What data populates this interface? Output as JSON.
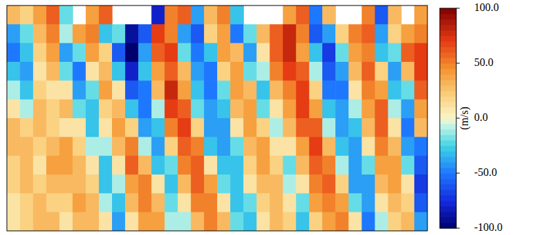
{
  "chart_data": {
    "type": "heatmap",
    "tick_labels": false,
    "cells": [
      [
        30,
        20,
        40,
        60,
        -20,
        null,
        40,
        60,
        null,
        null,
        null,
        -80,
        50,
        60,
        -40,
        30,
        50,
        -30,
        null,
        null,
        null,
        40,
        60,
        -50,
        30,
        null,
        null,
        50,
        -60,
        30,
        null,
        40
      ],
      [
        -40,
        -20,
        30,
        50,
        -10,
        40,
        50,
        -30,
        -20,
        -90,
        -60,
        70,
        50,
        -40,
        -60,
        20,
        40,
        -50,
        -20,
        30,
        60,
        80,
        50,
        -60,
        -40,
        20,
        50,
        60,
        -40,
        20,
        40,
        50
      ],
      [
        -50,
        -30,
        20,
        40,
        -40,
        -20,
        40,
        20,
        -60,
        -100,
        -40,
        60,
        70,
        -20,
        -50,
        -30,
        40,
        30,
        -40,
        10,
        60,
        80,
        40,
        -30,
        -70,
        -20,
        40,
        50,
        -30,
        -20,
        60,
        70
      ],
      [
        -30,
        -40,
        10,
        30,
        -20,
        -50,
        10,
        30,
        -30,
        -80,
        -30,
        40,
        60,
        30,
        -40,
        -50,
        20,
        40,
        -20,
        -10,
        50,
        70,
        60,
        -10,
        -60,
        -40,
        30,
        60,
        20,
        -40,
        30,
        70
      ],
      [
        -10,
        -30,
        20,
        10,
        10,
        -40,
        -20,
        40,
        10,
        -60,
        -50,
        30,
        80,
        40,
        -30,
        -50,
        -20,
        40,
        30,
        -30,
        30,
        50,
        70,
        20,
        -50,
        -50,
        10,
        50,
        40,
        -30,
        -20,
        60
      ],
      [
        10,
        -10,
        30,
        20,
        30,
        -20,
        -30,
        20,
        30,
        -30,
        -50,
        -10,
        70,
        60,
        -20,
        -40,
        -30,
        30,
        40,
        -20,
        10,
        40,
        70,
        40,
        -30,
        -40,
        -10,
        40,
        60,
        -10,
        -40,
        40
      ],
      [
        30,
        20,
        30,
        20,
        10,
        10,
        -30,
        10,
        40,
        20,
        -40,
        -30,
        50,
        70,
        20,
        -40,
        -40,
        10,
        40,
        20,
        -10,
        30,
        60,
        60,
        -10,
        -40,
        -30,
        30,
        60,
        10,
        -50,
        30
      ],
      [
        30,
        30,
        20,
        30,
        40,
        20,
        -10,
        -10,
        30,
        50,
        -10,
        -40,
        20,
        60,
        50,
        -30,
        -40,
        -20,
        30,
        40,
        10,
        10,
        40,
        70,
        30,
        -30,
        -40,
        10,
        50,
        30,
        -40,
        -50
      ],
      [
        20,
        30,
        10,
        40,
        40,
        30,
        10,
        -30,
        10,
        60,
        30,
        -30,
        -20,
        50,
        60,
        10,
        -30,
        -30,
        20,
        40,
        20,
        -20,
        30,
        60,
        50,
        -10,
        -40,
        -20,
        40,
        40,
        -20,
        -60
      ],
      [
        20,
        30,
        20,
        30,
        30,
        30,
        20,
        -30,
        -10,
        40,
        50,
        10,
        -30,
        30,
        60,
        40,
        -20,
        -30,
        10,
        30,
        30,
        -10,
        10,
        50,
        60,
        20,
        -40,
        -40,
        30,
        40,
        10,
        -70
      ],
      [
        10,
        20,
        30,
        20,
        20,
        40,
        30,
        -10,
        -30,
        30,
        50,
        30,
        -20,
        10,
        50,
        50,
        10,
        -30,
        -20,
        20,
        30,
        10,
        -20,
        40,
        50,
        40,
        -20,
        -40,
        10,
        30,
        20,
        -60
      ],
      [
        10,
        20,
        30,
        30,
        10,
        30,
        30,
        10,
        -40,
        10,
        40,
        40,
        -10,
        -10,
        30,
        50,
        30,
        -20,
        -30,
        10,
        30,
        20,
        -30,
        20,
        40,
        50,
        10,
        -50,
        -10,
        20,
        30,
        -40
      ]
    ],
    "colorbar": {
      "range": [
        -100,
        100
      ],
      "ticks": [
        {
          "value": 100,
          "label": "100.0"
        },
        {
          "value": 50,
          "label": "50.0"
        },
        {
          "value": 0,
          "label": "0.0"
        },
        {
          "value": -50,
          "label": "-50.0"
        },
        {
          "value": -100,
          "label": "-100.0"
        }
      ],
      "label": "(m/s)"
    }
  }
}
